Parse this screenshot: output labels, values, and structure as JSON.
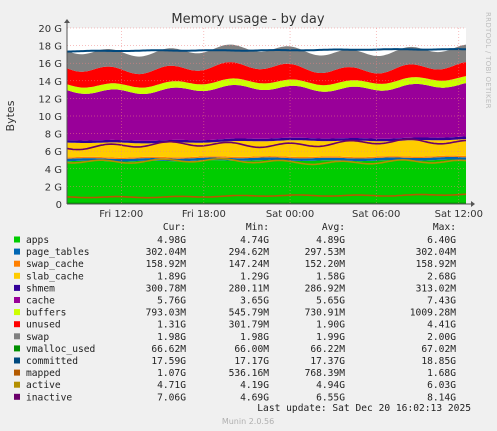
{
  "chart_data": {
    "type": "area",
    "title": "Memory usage - by day",
    "ylabel": "Bytes",
    "ylim": [
      0,
      20
    ],
    "yticks": [
      "0",
      "2 G",
      "4 G",
      "6 G",
      "8 G",
      "10 G",
      "12 G",
      "14 G",
      "16 G",
      "18 G",
      "20 G"
    ],
    "xticks": [
      "Fri 12:00",
      "Fri 18:00",
      "Sat 00:00",
      "Sat 06:00",
      "Sat 12:00"
    ],
    "xtick_pos": [
      0.14,
      0.37,
      0.61,
      0.85,
      1.08
    ],
    "x_span_hours": 30,
    "side_label": "RRDTOOL / TOBI OETIKER",
    "footer": "Munin 2.0.56",
    "last_update": "Last update:  Sat Dec 20 16:02:13 2025",
    "legend_headers": [
      "Cur:",
      "Min:",
      "Avg:",
      "Max:"
    ],
    "series": [
      {
        "name": "apps",
        "color": "#00cc00",
        "cur": "4.98G",
        "min": "4.74G",
        "avg": "4.89G",
        "max": "6.40G"
      },
      {
        "name": "page_tables",
        "color": "#0066b3",
        "cur": "302.04M",
        "min": "294.62M",
        "avg": "297.53M",
        "max": "302.04M"
      },
      {
        "name": "swap_cache",
        "color": "#ff8000",
        "cur": "158.92M",
        "min": "147.24M",
        "avg": "152.20M",
        "max": "158.92M"
      },
      {
        "name": "slab_cache",
        "color": "#ffcc00",
        "cur": "1.89G",
        "min": "1.29G",
        "avg": "1.58G",
        "max": "2.68G"
      },
      {
        "name": "shmem",
        "color": "#330099",
        "cur": "300.78M",
        "min": "280.11M",
        "avg": "286.92M",
        "max": "313.02M"
      },
      {
        "name": "cache",
        "color": "#990099",
        "cur": "5.76G",
        "min": "3.65G",
        "avg": "5.65G",
        "max": "7.43G"
      },
      {
        "name": "buffers",
        "color": "#ccff00",
        "cur": "793.03M",
        "min": "545.79M",
        "avg": "730.91M",
        "max": "1009.28M"
      },
      {
        "name": "unused",
        "color": "#ff0000",
        "cur": "1.31G",
        "min": "301.79M",
        "avg": "1.90G",
        "max": "4.41G"
      },
      {
        "name": "swap",
        "color": "#808080",
        "cur": "1.98G",
        "min": "1.98G",
        "avg": "1.99G",
        "max": "2.00G"
      },
      {
        "name": "vmalloc_used",
        "color": "#008f00",
        "cur": "66.62M",
        "min": "66.00M",
        "avg": "66.22M",
        "max": "67.02M"
      },
      {
        "name": "committed",
        "color": "#00487d",
        "cur": "17.59G",
        "min": "17.17G",
        "avg": "17.37G",
        "max": "18.85G"
      },
      {
        "name": "mapped",
        "color": "#b35a00",
        "cur": "1.07G",
        "min": "536.16M",
        "avg": "768.39M",
        "max": "1.68G"
      },
      {
        "name": "active",
        "color": "#b38f00",
        "cur": "4.71G",
        "min": "4.19G",
        "avg": "4.94G",
        "max": "6.03G"
      },
      {
        "name": "inactive",
        "color": "#6b006b",
        "cur": "7.06G",
        "min": "4.69G",
        "avg": "6.55G",
        "max": "8.14G"
      }
    ]
  }
}
